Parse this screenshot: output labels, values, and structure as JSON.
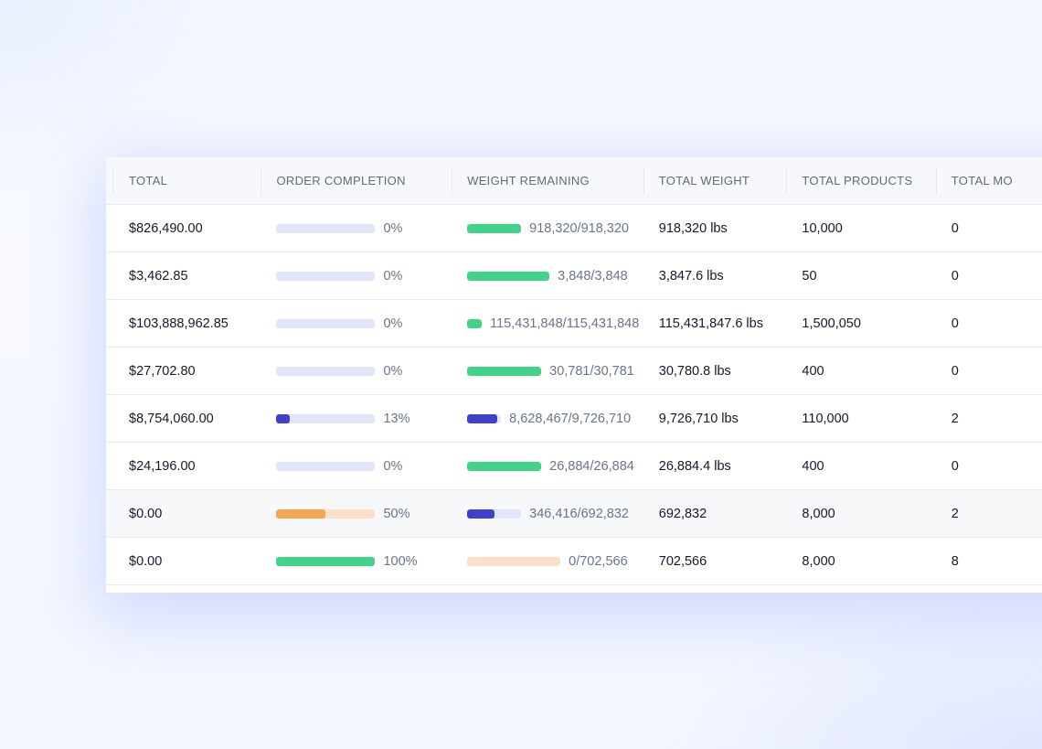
{
  "colors": {
    "green": "#3fd48a",
    "indigo": "#3f3fd0",
    "orange": "#f7a552",
    "peach_track": "#fde0c8",
    "lavender_track": "#e3e6fb"
  },
  "columns": [
    {
      "key": "total",
      "label": "TOTAL"
    },
    {
      "key": "order_completion",
      "label": "ORDER COMPLETION"
    },
    {
      "key": "weight_remaining",
      "label": "WEIGHT REMAINING"
    },
    {
      "key": "total_weight",
      "label": "TOTAL WEIGHT"
    },
    {
      "key": "total_products",
      "label": "TOTAL PRODUCTS"
    },
    {
      "key": "total_mo",
      "label": "TOTAL MO"
    }
  ],
  "rows": [
    {
      "total": "$826,490.00",
      "completion": 0,
      "completion_label": "0%",
      "completion_color": "green",
      "completion_track": "lavender_track",
      "weight_fraction": 1.0,
      "weight_color": "green",
      "weight_track": "none",
      "weight_text": "918,320/918,320",
      "total_weight": "918,320 lbs",
      "total_products": "10,000",
      "total_mo": "0"
    },
    {
      "total": "$3,462.85",
      "completion": 0,
      "completion_label": "0%",
      "completion_color": "green",
      "completion_track": "lavender_track",
      "weight_fraction": 1.0,
      "weight_color": "green",
      "weight_track": "none",
      "weight_text": "3,848/3,848",
      "total_weight": "3,847.6 lbs",
      "total_products": "50",
      "total_mo": "0"
    },
    {
      "total": "$103,888,962.85",
      "completion": 0,
      "completion_label": "0%",
      "completion_color": "green",
      "completion_track": "lavender_track",
      "weight_fraction": 1.0,
      "weight_color": "green",
      "weight_track": "none",
      "weight_text": "115,431,848/115,431,848",
      "total_weight": "115,431,847.6 lbs",
      "total_products": "1,500,050",
      "total_mo": "0"
    },
    {
      "total": "$27,702.80",
      "completion": 0,
      "completion_label": "0%",
      "completion_color": "green",
      "completion_track": "lavender_track",
      "weight_fraction": 1.0,
      "weight_color": "green",
      "weight_track": "none",
      "weight_text": "30,781/30,781",
      "total_weight": "30,780.8 lbs",
      "total_products": "400",
      "total_mo": "0"
    },
    {
      "total": "$8,754,060.00",
      "completion": 0.13,
      "completion_label": "13%",
      "completion_color": "indigo",
      "completion_track": "lavender_track",
      "weight_fraction": 0.887,
      "weight_color": "indigo",
      "weight_track": "lavender_track",
      "weight_text": "8,628,467/9,726,710",
      "total_weight": "9,726,710 lbs",
      "total_products": "110,000",
      "total_mo": "2"
    },
    {
      "total": "$24,196.00",
      "completion": 0,
      "completion_label": "0%",
      "completion_color": "green",
      "completion_track": "lavender_track",
      "weight_fraction": 1.0,
      "weight_color": "green",
      "weight_track": "none",
      "weight_text": "26,884/26,884",
      "total_weight": "26,884.4 lbs",
      "total_products": "400",
      "total_mo": "0"
    },
    {
      "total": "$0.00",
      "completion": 0.5,
      "completion_label": "50%",
      "completion_color": "orange",
      "completion_track": "peach_track",
      "weight_fraction": 0.5,
      "weight_color": "indigo",
      "weight_track": "lavender_track",
      "weight_text": "346,416/692,832",
      "total_weight": "692,832",
      "total_products": "8,000",
      "total_mo": "2",
      "highlighted": true
    },
    {
      "total": "$0.00",
      "completion": 1.0,
      "completion_label": "100%",
      "completion_color": "green",
      "completion_track": "lavender_track",
      "weight_fraction": 0,
      "weight_color": "green",
      "weight_track": "peach_track",
      "weight_text": "0/702,566",
      "total_weight": "702,566",
      "total_products": "8,000",
      "total_mo": "8"
    }
  ]
}
